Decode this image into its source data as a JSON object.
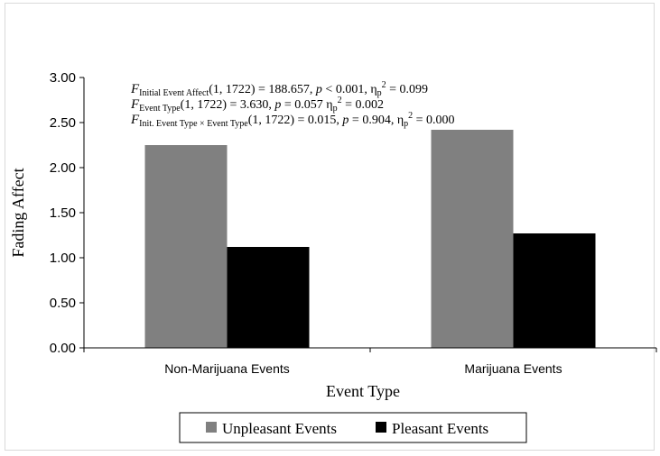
{
  "chart_data": {
    "type": "bar",
    "title": "",
    "xlabel": "Event Type",
    "ylabel": "Fading Affect",
    "categories": [
      "Non-Marijuana Events",
      "Marijuana Events"
    ],
    "series": [
      {
        "name": "Unpleasant Events",
        "values": [
          2.25,
          2.42
        ],
        "color": "#808080"
      },
      {
        "name": "Pleasant Events",
        "values": [
          1.12,
          1.27
        ],
        "color": "#000000"
      }
    ],
    "ylim": [
      0,
      3
    ],
    "yticks": [
      "0.00",
      "0.50",
      "1.00",
      "1.50",
      "2.00",
      "2.50",
      "3.00"
    ],
    "legend_position": "bottom",
    "grid": false,
    "annotations": [
      {
        "italic": "F",
        "sub": "Initial Event Affect",
        "rest": "(1, 1722) = 188.657, ",
        "p_label": "p",
        "p_text": " < 0.001, η",
        "eta_sub": "p",
        "eta_sup": "2",
        "eta_val": " = 0.099"
      },
      {
        "italic": "F",
        "sub": "Event Type",
        "rest": "(1, 1722) = 3.630, ",
        "p_label": "p",
        "p_text": " = 0.057 η",
        "eta_sub": "p",
        "eta_sup": "2",
        "eta_val": " = 0.002"
      },
      {
        "italic": "F",
        "sub": "Init. Event Type × Event Type",
        "rest": "(1, 1722) =  0.015, ",
        "p_label": "p",
        "p_text": " = 0.904, η",
        "eta_sub": "p",
        "eta_sup": "2",
        "eta_val": " = 0.000"
      }
    ]
  }
}
